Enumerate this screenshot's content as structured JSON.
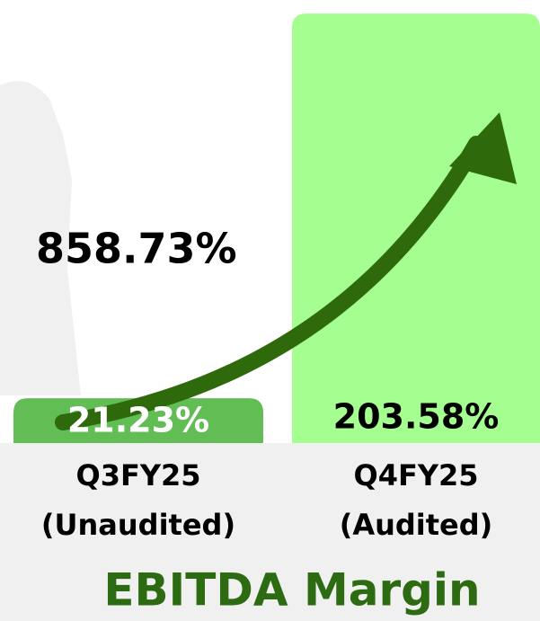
{
  "chart_data": {
    "type": "bar",
    "title": "EBITDA Margin",
    "categories": [
      "Q3FY25",
      "Q4FY25"
    ],
    "category_notes": [
      "(Unaudited)",
      "(Audited)"
    ],
    "values": [
      21.23,
      203.58
    ],
    "value_labels": [
      "21.23%",
      "203.58%"
    ],
    "colors": [
      "#62bd55",
      "#a5ff90"
    ],
    "label_colors": [
      "#ffffff",
      "#000000"
    ],
    "ylim": [
      0,
      210
    ],
    "annotation": "858.73%"
  }
}
